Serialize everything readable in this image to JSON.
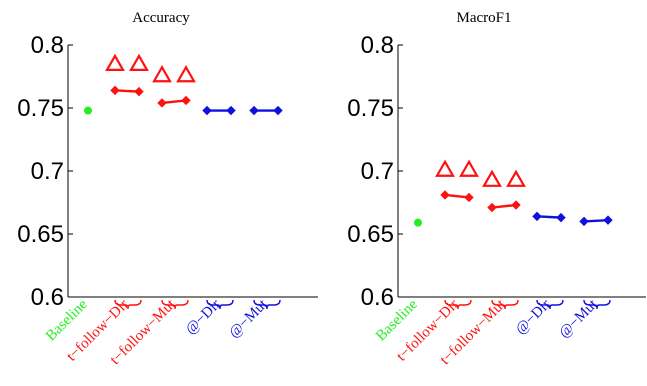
{
  "colors": {
    "baseline": "#22ee22",
    "follow": "#ff1111",
    "at": "#1111dd",
    "axis": "#000000"
  },
  "chart_data": [
    {
      "type": "scatter",
      "title": "Accuracy",
      "ylim": [
        0.6,
        0.8
      ],
      "yticks": [
        "0.6",
        "0.65",
        "0.7",
        "0.75",
        "0.8"
      ],
      "ytick_values": [
        0.6,
        0.65,
        0.7,
        0.75,
        0.8
      ],
      "categories": [
        "Baseline",
        "t−follow−Dir",
        "t−follow−Mut",
        "@−Dir",
        "@−Mut"
      ],
      "category_colors": [
        "baseline",
        "follow",
        "follow",
        "at",
        "at"
      ],
      "grid": false,
      "baseline": {
        "category": 0,
        "value": 0.748
      },
      "pairs": [
        {
          "category": 1,
          "values": [
            0.764,
            0.763
          ],
          "triangles": [
            0.785,
            0.785
          ],
          "color": "follow"
        },
        {
          "category": 2,
          "values": [
            0.754,
            0.756
          ],
          "triangles": [
            0.776,
            0.776
          ],
          "color": "follow"
        },
        {
          "category": 3,
          "values": [
            0.748,
            0.748
          ],
          "triangles": null,
          "color": "at"
        },
        {
          "category": 4,
          "values": [
            0.748,
            0.748
          ],
          "triangles": null,
          "color": "at"
        }
      ]
    },
    {
      "type": "scatter",
      "title": "MacroF1",
      "ylim": [
        0.6,
        0.8
      ],
      "yticks": [
        "0.6",
        "0.65",
        "0.7",
        "0.75",
        "0.8"
      ],
      "ytick_values": [
        0.6,
        0.65,
        0.7,
        0.75,
        0.8
      ],
      "categories": [
        "Baseline",
        "t−follow−Dir",
        "t−follow−Mut",
        "@−Dir",
        "@−Mut"
      ],
      "category_colors": [
        "baseline",
        "follow",
        "follow",
        "at",
        "at"
      ],
      "grid": false,
      "baseline": {
        "category": 0,
        "value": 0.659
      },
      "pairs": [
        {
          "category": 1,
          "values": [
            0.681,
            0.679
          ],
          "triangles": [
            0.701,
            0.701
          ],
          "color": "follow"
        },
        {
          "category": 2,
          "values": [
            0.671,
            0.673
          ],
          "triangles": [
            0.693,
            0.693
          ],
          "color": "follow"
        },
        {
          "category": 3,
          "values": [
            0.664,
            0.663
          ],
          "triangles": null,
          "color": "at"
        },
        {
          "category": 4,
          "values": [
            0.66,
            0.661
          ],
          "triangles": null,
          "color": "at"
        }
      ]
    }
  ]
}
